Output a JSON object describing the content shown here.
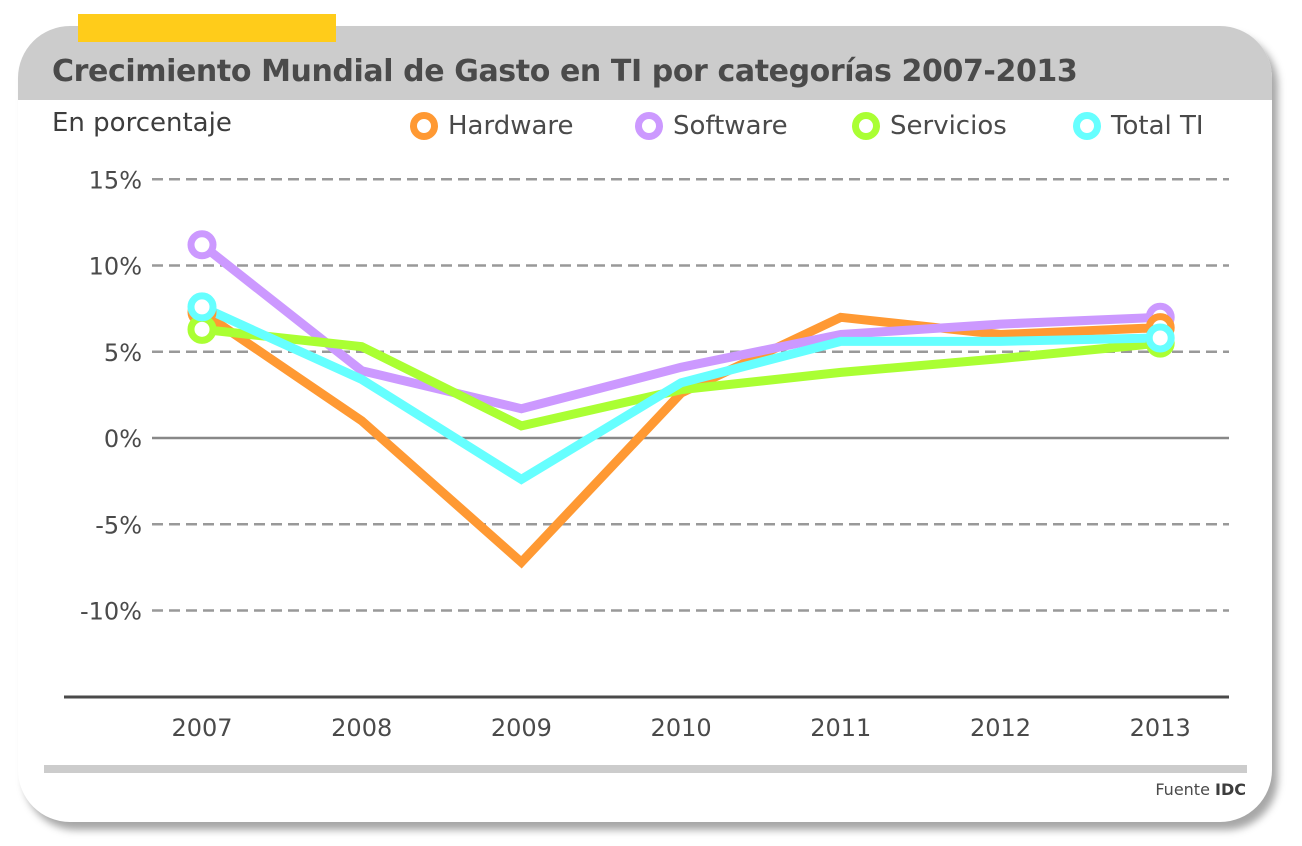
{
  "chart_data": {
    "type": "line",
    "title": "Crecimiento Mundial de Gasto en TI por categorías 2007-2013",
    "ylabel": "En porcentaje",
    "xlabel": "",
    "categories": [
      "2007",
      "2008",
      "2009",
      "2010",
      "2011",
      "2012",
      "2013"
    ],
    "y_ticks": [
      "15%",
      "10%",
      "5%",
      "0%",
      "-5%",
      "-10%"
    ],
    "y_tick_values": [
      15,
      10,
      5,
      0,
      -5,
      -10
    ],
    "ylim": [
      -15,
      15
    ],
    "grid": true,
    "legend_position": "top",
    "series": [
      {
        "name": "Hardware",
        "color": "#ff9933",
        "values": [
          7.3,
          1.0,
          -7.2,
          2.6,
          7.0,
          6.0,
          6.4
        ]
      },
      {
        "name": "Software",
        "color": "#cc99ff",
        "values": [
          11.2,
          3.9,
          1.7,
          4.1,
          6.0,
          6.6,
          7.0
        ]
      },
      {
        "name": "Servicios",
        "color": "#aaff33",
        "values": [
          6.3,
          5.3,
          0.7,
          2.8,
          3.8,
          4.6,
          5.5
        ]
      },
      {
        "name": "Total TI",
        "color": "#66ffff",
        "values": [
          7.6,
          3.4,
          -2.4,
          3.2,
          5.6,
          5.6,
          5.8
        ]
      }
    ]
  },
  "header": {
    "title": "Crecimiento Mundial de Gasto en TI por categorías 2007-2013",
    "subtitle": "En porcentaje"
  },
  "legend": [
    "Hardware",
    "Software",
    "Servicios",
    "Total TI"
  ],
  "footer": {
    "source_label": "Fuente",
    "source_name": "IDC"
  },
  "colors": {
    "accent": "#ffcc1a",
    "header_bg": "#cccccc"
  }
}
